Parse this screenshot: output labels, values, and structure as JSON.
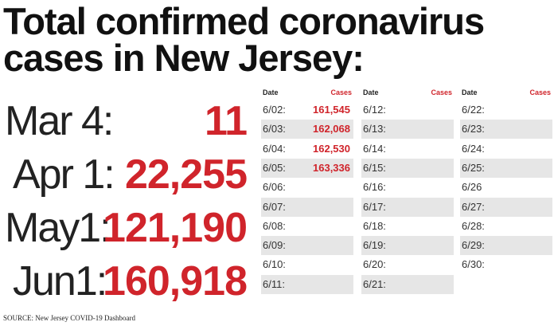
{
  "title": {
    "lines": [
      "Total confirmed coronavirus",
      "cases in New Jersey:"
    ]
  },
  "milestones": [
    {
      "label": "Mar 4:",
      "value": "11"
    },
    {
      "label": "Apr 1:",
      "value": "22,255"
    },
    {
      "label": "May1:",
      "value": "121,190"
    },
    {
      "label": "Jun1:",
      "value": "160,918"
    }
  ],
  "table": {
    "columns": [
      {
        "date_header": "Date",
        "cases_header": "Cases",
        "rows": [
          {
            "date": "6/02:",
            "cases": "161,545"
          },
          {
            "date": "6/03:",
            "cases": "162,068"
          },
          {
            "date": "6/04:",
            "cases": "162,530"
          },
          {
            "date": "6/05:",
            "cases": "163,336"
          },
          {
            "date": "6/06:"
          },
          {
            "date": "6/07:"
          },
          {
            "date": "6/08:"
          },
          {
            "date": "6/09:"
          },
          {
            "date": "6/10:"
          },
          {
            "date": "6/11:"
          }
        ]
      },
      {
        "date_header": "Date",
        "cases_header": "Cases",
        "rows": [
          {
            "date": "6/12:"
          },
          {
            "date": "6/13:"
          },
          {
            "date": "6/14:"
          },
          {
            "date": "6/15:"
          },
          {
            "date": "6/16:"
          },
          {
            "date": "6/17:"
          },
          {
            "date": "6/18:"
          },
          {
            "date": "6/19:"
          },
          {
            "date": "6/20:"
          },
          {
            "date": "6/21:"
          }
        ]
      },
      {
        "date_header": "Date",
        "cases_header": "Cases",
        "rows": [
          {
            "date": "6/22:"
          },
          {
            "date": "6/23:"
          },
          {
            "date": "6/24:"
          },
          {
            "date": "6/25:"
          },
          {
            "date": "6/26"
          },
          {
            "date": "6/27:"
          },
          {
            "date": "6/28:"
          },
          {
            "date": "6/29:"
          },
          {
            "date": "6/30:"
          }
        ]
      }
    ]
  },
  "source": "SOURCE: New Jersey COVID-19 Dashboard"
}
